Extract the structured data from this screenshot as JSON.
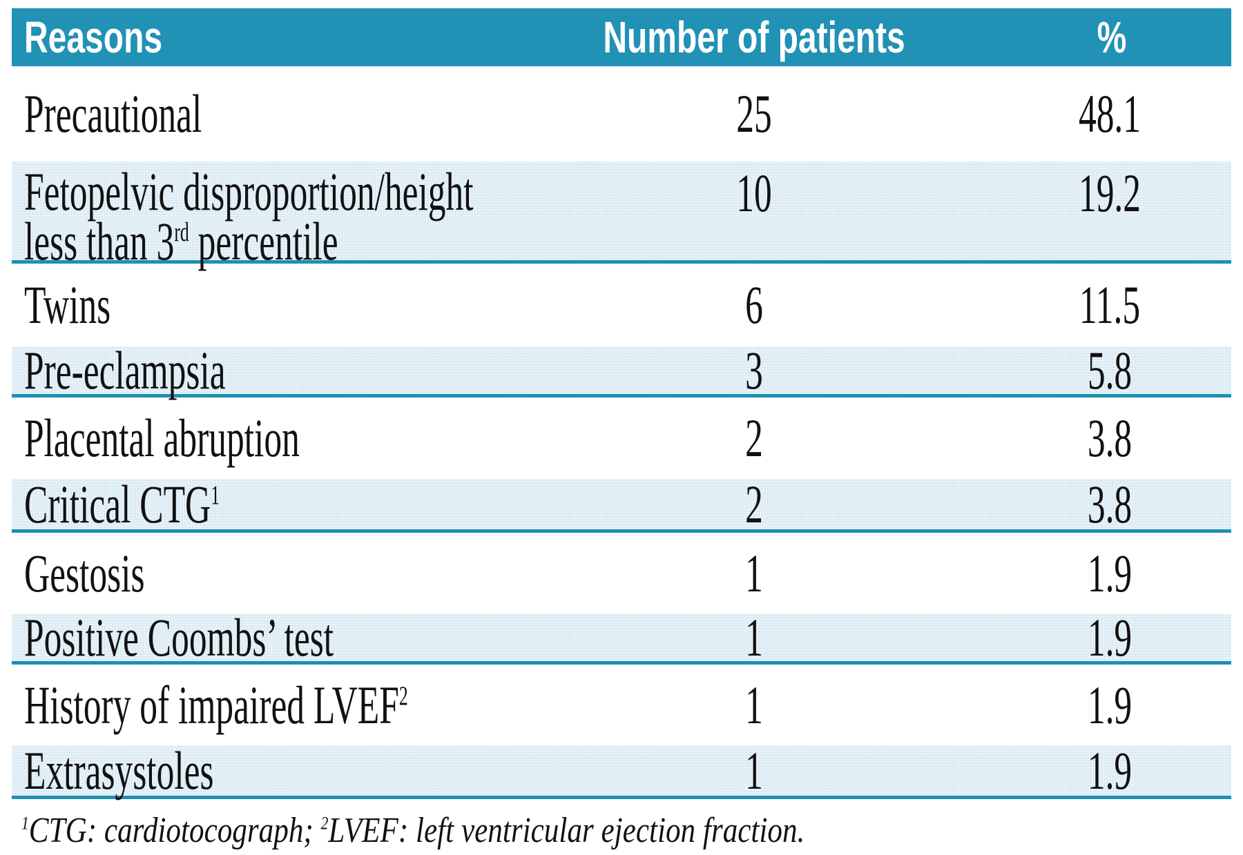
{
  "table": {
    "header": {
      "reasons": "Reasons",
      "patients": "Number of patients",
      "percent": "%"
    },
    "rows": [
      {
        "reason": [
          {
            "text": "Precautional"
          }
        ],
        "patients": "25",
        "percent": "48.1",
        "shaded": false
      },
      {
        "reason": [
          {
            "text": "Fetopelvic disproportion/height"
          },
          {
            "br": true
          },
          {
            "text": "less than 3"
          },
          {
            "sup": "rd"
          },
          {
            "text": " percentile"
          }
        ],
        "patients": "10",
        "percent": "19.2",
        "shaded": true
      },
      {
        "reason": [
          {
            "text": "Twins"
          }
        ],
        "patients": "6",
        "percent": "11.5",
        "shaded": false
      },
      {
        "reason": [
          {
            "text": "Pre-eclampsia"
          }
        ],
        "patients": "3",
        "percent": "5.8",
        "shaded": true
      },
      {
        "reason": [
          {
            "text": "Placental abruption"
          }
        ],
        "patients": "2",
        "percent": "3.8",
        "shaded": false
      },
      {
        "reason": [
          {
            "text": "Critical CTG"
          },
          {
            "sup": "1"
          }
        ],
        "patients": "2",
        "percent": "3.8",
        "shaded": true
      },
      {
        "reason": [
          {
            "text": "Gestosis"
          }
        ],
        "patients": "1",
        "percent": "1.9",
        "shaded": false
      },
      {
        "reason": [
          {
            "text": "Positive Coombs’ test"
          }
        ],
        "patients": "1",
        "percent": "1.9",
        "shaded": true
      },
      {
        "reason": [
          {
            "text": "History of impaired LVEF"
          },
          {
            "sup": "2"
          }
        ],
        "patients": "1",
        "percent": "1.9",
        "shaded": false
      },
      {
        "reason": [
          {
            "text": "Extrasystoles"
          }
        ],
        "patients": "1",
        "percent": "1.9",
        "shaded": true
      }
    ],
    "footnote": [
      {
        "sup": "1"
      },
      {
        "text": "CTG: cardiotocograph; "
      },
      {
        "sup": "2"
      },
      {
        "text": "LVEF: left ventricular ejection fraction."
      }
    ]
  },
  "colors": {
    "header_bg": "#2191b5",
    "header_text": "#ffffff",
    "shaded_row_bg": "#d9eaf3",
    "divider_line": "#1e8fb3",
    "body_text": "#111111"
  },
  "chart_data": {
    "type": "table",
    "title": "",
    "columns": [
      "Reasons",
      "Number of patients",
      "%"
    ],
    "rows": [
      [
        "Precautional",
        25,
        48.1
      ],
      [
        "Fetopelvic disproportion/height less than 3rd percentile",
        10,
        19.2
      ],
      [
        "Twins",
        6,
        11.5
      ],
      [
        "Pre-eclampsia",
        3,
        5.8
      ],
      [
        "Placental abruption",
        2,
        3.8
      ],
      [
        "Critical CTG",
        2,
        3.8
      ],
      [
        "Gestosis",
        1,
        1.9
      ],
      [
        "Positive Coombs’ test",
        1,
        1.9
      ],
      [
        "History of impaired LVEF",
        1,
        1.9
      ],
      [
        "Extrasystoles",
        1,
        1.9
      ]
    ],
    "footnote": "1CTG: cardiotocograph; 2LVEF: left ventricular ejection fraction."
  }
}
